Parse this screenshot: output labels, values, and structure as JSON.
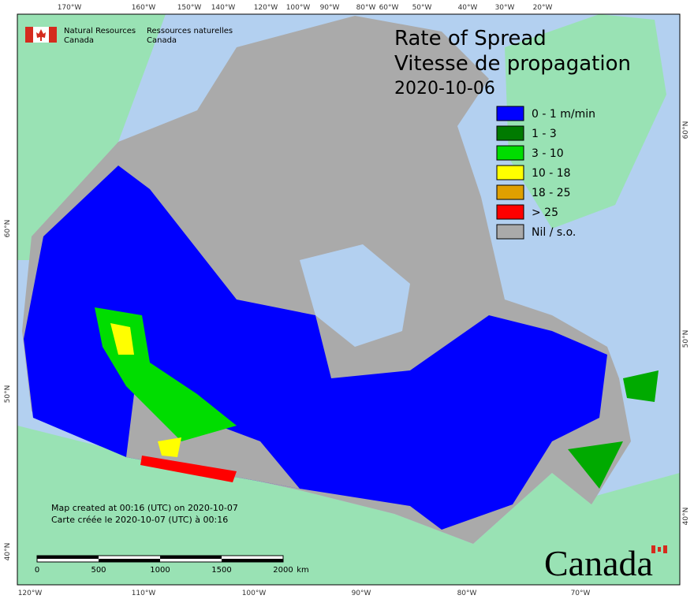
{
  "header": {
    "org_en": [
      "Natural Resources",
      "Canada"
    ],
    "org_fr": [
      "Ressources naturelles",
      "Canada"
    ]
  },
  "title": [
    "Rate of Spread",
    "Vitesse de propagation",
    "2020-10-06"
  ],
  "legend": [
    {
      "label": "0 - 1 m/min",
      "color": "#0000ff"
    },
    {
      "label": "1 - 3",
      "color": "#007a00"
    },
    {
      "label": "3 - 10",
      "color": "#00dd00"
    },
    {
      "label": "10 - 18",
      "color": "#ffff00"
    },
    {
      "label": "18 - 25",
      "color": "#e0a000"
    },
    {
      "label": "> 25",
      "color": "#ff0000"
    },
    {
      "label": "Nil / s.o.",
      "color": "#aaaaaa"
    }
  ],
  "graticule": {
    "top": [
      "170°W",
      "160°W",
      "150°W",
      "140°W",
      "120°W",
      "100°W",
      "90°W",
      "80°W",
      "60°W",
      "50°W",
      "40°W",
      "30°W",
      "20°W"
    ],
    "bottom": [
      "120°W",
      "110°W",
      "100°W",
      "90°W",
      "80°W",
      "70°W"
    ],
    "left": [
      "60°N",
      "50°N",
      "40°N"
    ],
    "right": [
      "60°N",
      "50°N",
      "40°N"
    ]
  },
  "credits": [
    "Map created at 00:16 (UTC) on 2020-10-07",
    "Carte créée le 2020-10-07 (UTC) à 00:16"
  ],
  "scale": [
    "0",
    "500",
    "1000",
    "1500",
    "2000",
    "km"
  ],
  "wordmark": "Canada"
}
